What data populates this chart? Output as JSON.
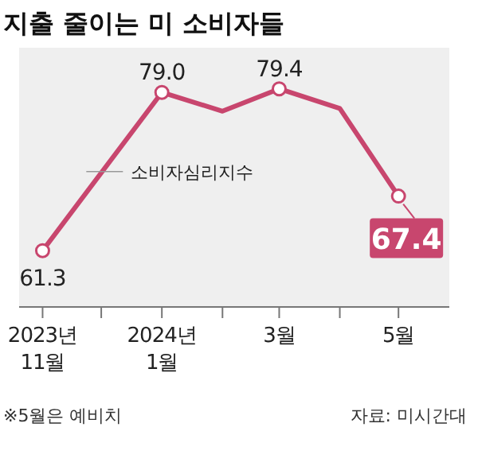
{
  "chart_data": {
    "type": "line",
    "title": "지출 줄이는 미 소비자들",
    "x": [
      "2023-11",
      "2024-01",
      "2024-02",
      "2024-03",
      "2024-04",
      "2024-05"
    ],
    "xlim": [
      "2023-10-20",
      "2024-05-27"
    ],
    "xticks": [
      {
        "value": "2023-11",
        "label": "2023년\n11월"
      },
      {
        "value": "2023-12",
        "label": null
      },
      {
        "value": "2024-01",
        "label": "2024년\n1월"
      },
      {
        "value": "2024-02",
        "label": null
      },
      {
        "value": "2024-03",
        "label": "3월"
      },
      {
        "value": "2024-04",
        "label": null
      },
      {
        "value": "2024-05",
        "label": "5월"
      }
    ],
    "ylim": [
      55,
      84
    ],
    "tick_labels": "x",
    "marker": "circle",
    "series": [
      {
        "name": "소비자심리지수",
        "color": "#c8466e",
        "values": [
          61.3,
          79.0,
          76.9,
          79.4,
          77.2,
          67.4
        ],
        "value_labels": [
          "61.3",
          "79.0",
          null,
          "79.4",
          null,
          "67.4"
        ]
      }
    ],
    "annotations": [
      "※5월은 예비치",
      "자료: 미시간대"
    ]
  }
}
